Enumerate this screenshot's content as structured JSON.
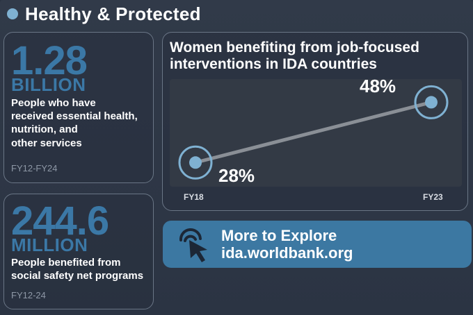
{
  "header": {
    "title": "Healthy & Protected"
  },
  "stats": [
    {
      "number": "1.28",
      "unit": "BILLION",
      "description_lines": [
        "People who have",
        "received essential health,",
        "nutrition, and",
        "other services"
      ],
      "period": "FY12-FY24"
    },
    {
      "number": "244.6",
      "unit": "MILLION",
      "description_lines": [
        "People benefited from",
        "social safety net programs"
      ],
      "period": "FY12-24"
    }
  ],
  "chart_data": {
    "type": "line",
    "title": "Women benefiting from job-focused interventions in IDA countries",
    "categories": [
      "FY18",
      "FY23"
    ],
    "values": [
      28,
      48
    ],
    "value_labels": [
      "28%",
      "48%"
    ],
    "ylim": [
      20,
      55
    ],
    "grid": false
  },
  "explore": {
    "title": "More to Explore",
    "link": "ida.worldbank.org"
  },
  "colors": {
    "accent": "#3b78a6",
    "point": "#7fb1d2",
    "background": "#2b3443"
  },
  "icons": {
    "bullet": "circle-bullet-icon",
    "explore": "cursor-click-icon"
  }
}
